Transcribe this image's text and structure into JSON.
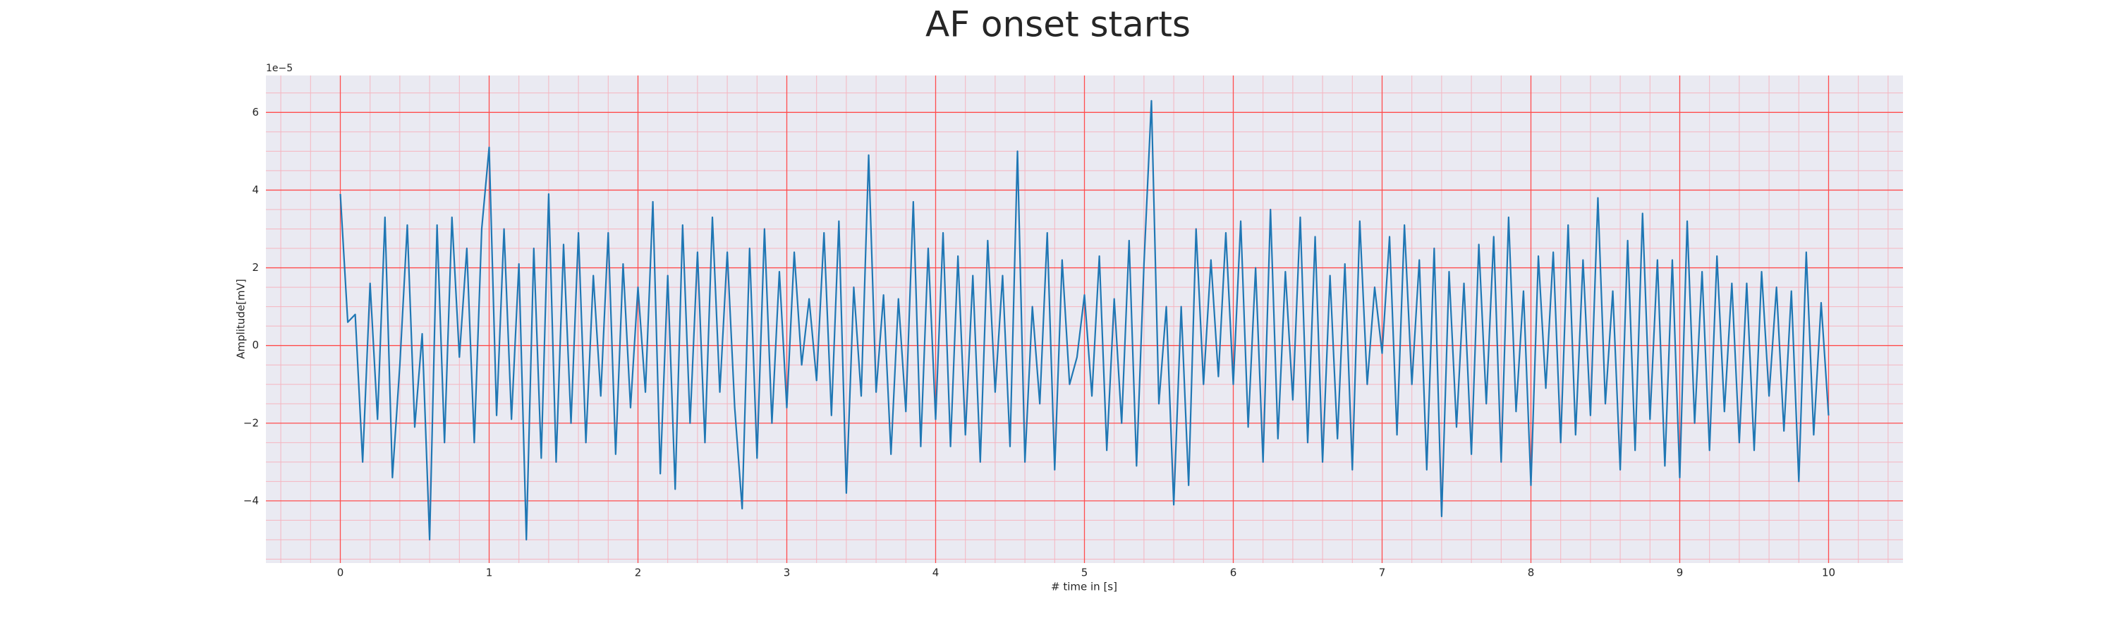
{
  "chart_data": {
    "type": "line",
    "title": "AF onset starts",
    "x_label": "# time in [s]",
    "y_label": "Amplitude[mV]",
    "offset_text": "1e−5",
    "xlim": [
      -0.5,
      10.5
    ],
    "ylim": [
      -5.6,
      6.95
    ],
    "xticks": [
      0,
      1,
      2,
      3,
      4,
      5,
      6,
      7,
      8,
      9,
      10
    ],
    "yticks": [
      {
        "value": -4,
        "label": "−4"
      },
      {
        "value": -2,
        "label": "−2"
      },
      0,
      2,
      4,
      6
    ],
    "xminor": [
      -0.4,
      -0.2,
      0.2,
      0.4,
      0.6,
      0.8,
      1.2,
      1.4,
      1.6,
      1.8,
      2.2,
      2.4,
      2.6,
      2.8,
      3.2,
      3.4,
      3.6,
      3.8,
      4.2,
      4.4,
      4.6,
      4.8,
      5.2,
      5.4,
      5.6,
      5.8,
      6.2,
      6.4,
      6.6,
      6.8,
      7.2,
      7.4,
      7.6,
      7.8,
      8.2,
      8.4,
      8.6,
      8.8,
      9.2,
      9.4,
      9.6,
      9.8,
      10.2,
      10.4
    ],
    "yminor": [
      -5.5,
      -5,
      -4.5,
      -3.5,
      -3,
      -2.5,
      -1.5,
      -1,
      -0.5,
      0.5,
      1,
      1.5,
      2.5,
      3,
      3.5,
      4.5,
      5,
      5.5,
      6.5
    ],
    "grid": true,
    "grid_color": "#ff4d4d",
    "minor_grid_color": "#f5b5c0",
    "background": "#eaeaf2",
    "x": [
      0,
      0.05,
      0.1,
      0.15,
      0.2,
      0.25,
      0.3,
      0.35,
      0.4,
      0.45,
      0.5,
      0.55,
      0.6,
      0.65,
      0.7,
      0.75,
      0.8,
      0.85,
      0.9,
      0.95,
      1,
      1.05,
      1.1,
      1.15,
      1.2,
      1.25,
      1.3,
      1.35,
      1.4,
      1.45,
      1.5,
      1.55,
      1.6,
      1.65,
      1.7,
      1.75,
      1.8,
      1.85,
      1.9,
      1.95,
      2,
      2.05,
      2.1,
      2.15,
      2.2,
      2.25,
      2.3,
      2.35,
      2.4,
      2.45,
      2.5,
      2.55,
      2.6,
      2.65,
      2.7,
      2.75,
      2.8,
      2.85,
      2.9,
      2.95,
      3,
      3.05,
      3.1,
      3.15,
      3.2,
      3.25,
      3.3,
      3.35,
      3.4,
      3.45,
      3.5,
      3.55,
      3.6,
      3.65,
      3.7,
      3.75,
      3.8,
      3.85,
      3.9,
      3.95,
      4,
      4.05,
      4.1,
      4.15,
      4.2,
      4.25,
      4.3,
      4.35,
      4.4,
      4.45,
      4.5,
      4.55,
      4.6,
      4.65,
      4.7,
      4.75,
      4.8,
      4.85,
      4.9,
      4.95,
      5,
      5.05,
      5.1,
      5.15,
      5.2,
      5.25,
      5.3,
      5.35,
      5.4,
      5.45,
      5.5,
      5.55,
      5.6,
      5.65,
      5.7,
      5.75,
      5.8,
      5.85,
      5.9,
      5.95,
      6,
      6.05,
      6.1,
      6.15,
      6.2,
      6.25,
      6.3,
      6.35,
      6.4,
      6.45,
      6.5,
      6.55,
      6.6,
      6.65,
      6.7,
      6.75,
      6.8,
      6.85,
      6.9,
      6.95,
      7,
      7.05,
      7.1,
      7.15,
      7.2,
      7.25,
      7.3,
      7.35,
      7.4,
      7.45,
      7.5,
      7.55,
      7.6,
      7.65,
      7.7,
      7.75,
      7.8,
      7.85,
      7.9,
      7.95,
      8,
      8.05,
      8.1,
      8.15,
      8.2,
      8.25,
      8.3,
      8.35,
      8.4,
      8.45,
      8.5,
      8.55,
      8.6,
      8.65,
      8.7,
      8.75,
      8.8,
      8.85,
      8.9,
      8.95,
      9,
      9.05,
      9.1,
      9.15,
      9.2,
      9.25,
      9.3,
      9.35,
      9.4,
      9.45,
      9.5,
      9.55,
      9.6,
      9.65,
      9.7,
      9.75,
      9.8,
      9.85,
      9.9,
      9.95,
      10
    ],
    "series": [
      {
        "color": "#1f77b4",
        "values": [
          3.9,
          0.6,
          0.8,
          -3.0,
          1.6,
          -1.9,
          3.3,
          -3.4,
          -0.5,
          3.1,
          -2.1,
          0.3,
          -5.0,
          3.1,
          -2.5,
          3.3,
          -0.3,
          2.5,
          -2.5,
          3.0,
          5.1,
          -1.8,
          3.0,
          -1.9,
          2.1,
          -5.0,
          2.5,
          -2.9,
          3.9,
          -3.0,
          2.6,
          -2.0,
          2.9,
          -2.5,
          1.8,
          -1.3,
          2.9,
          -2.8,
          2.1,
          -1.6,
          1.5,
          -1.2,
          3.7,
          -3.3,
          1.8,
          -3.7,
          3.1,
          -2.0,
          2.4,
          -2.5,
          3.3,
          -1.2,
          2.4,
          -1.6,
          -4.2,
          2.5,
          -2.9,
          3.0,
          -2.0,
          1.9,
          -1.6,
          2.4,
          -0.5,
          1.2,
          -0.9,
          2.9,
          -1.8,
          3.2,
          -3.8,
          1.5,
          -1.3,
          4.9,
          -1.2,
          1.3,
          -2.8,
          1.2,
          -1.7,
          3.7,
          -2.6,
          2.5,
          -1.9,
          2.9,
          -2.6,
          2.3,
          -2.3,
          1.8,
          -3.0,
          2.7,
          -1.2,
          1.8,
          -2.6,
          5.0,
          -3.0,
          1.0,
          -1.5,
          2.9,
          -3.2,
          2.2,
          -1.0,
          -0.3,
          1.3,
          -1.3,
          2.3,
          -2.7,
          1.2,
          -2.0,
          2.7,
          -3.1,
          2.1,
          6.3,
          -1.5,
          1.0,
          -4.1,
          1.0,
          -3.6,
          3.0,
          -1.0,
          2.2,
          -0.8,
          2.9,
          -1.0,
          3.2,
          -2.1,
          2.0,
          -3.0,
          3.5,
          -2.4,
          1.9,
          -1.4,
          3.3,
          -2.5,
          2.8,
          -3.0,
          1.8,
          -2.4,
          2.1,
          -3.2,
          3.2,
          -1.0,
          1.5,
          -0.2,
          2.8,
          -2.3,
          3.1,
          -1.0,
          2.2,
          -3.2,
          2.5,
          -4.4,
          1.9,
          -2.1,
          1.6,
          -2.8,
          2.6,
          -1.5,
          2.8,
          -3.0,
          3.3,
          -1.7,
          1.4,
          -3.6,
          2.3,
          -1.1,
          2.4,
          -2.5,
          3.1,
          -2.3,
          2.2,
          -1.8,
          3.8,
          -1.5,
          1.4,
          -3.2,
          2.7,
          -2.7,
          3.4,
          -1.9,
          2.2,
          -3.1,
          2.2,
          -3.4,
          3.2,
          -2.0,
          1.9,
          -2.7,
          2.3,
          -1.7,
          1.6,
          -2.5,
          1.6,
          -2.7,
          1.9,
          -1.3,
          1.5,
          -2.2,
          1.4,
          -3.5,
          2.4,
          -2.3,
          1.1,
          -1.8
        ]
      }
    ]
  }
}
